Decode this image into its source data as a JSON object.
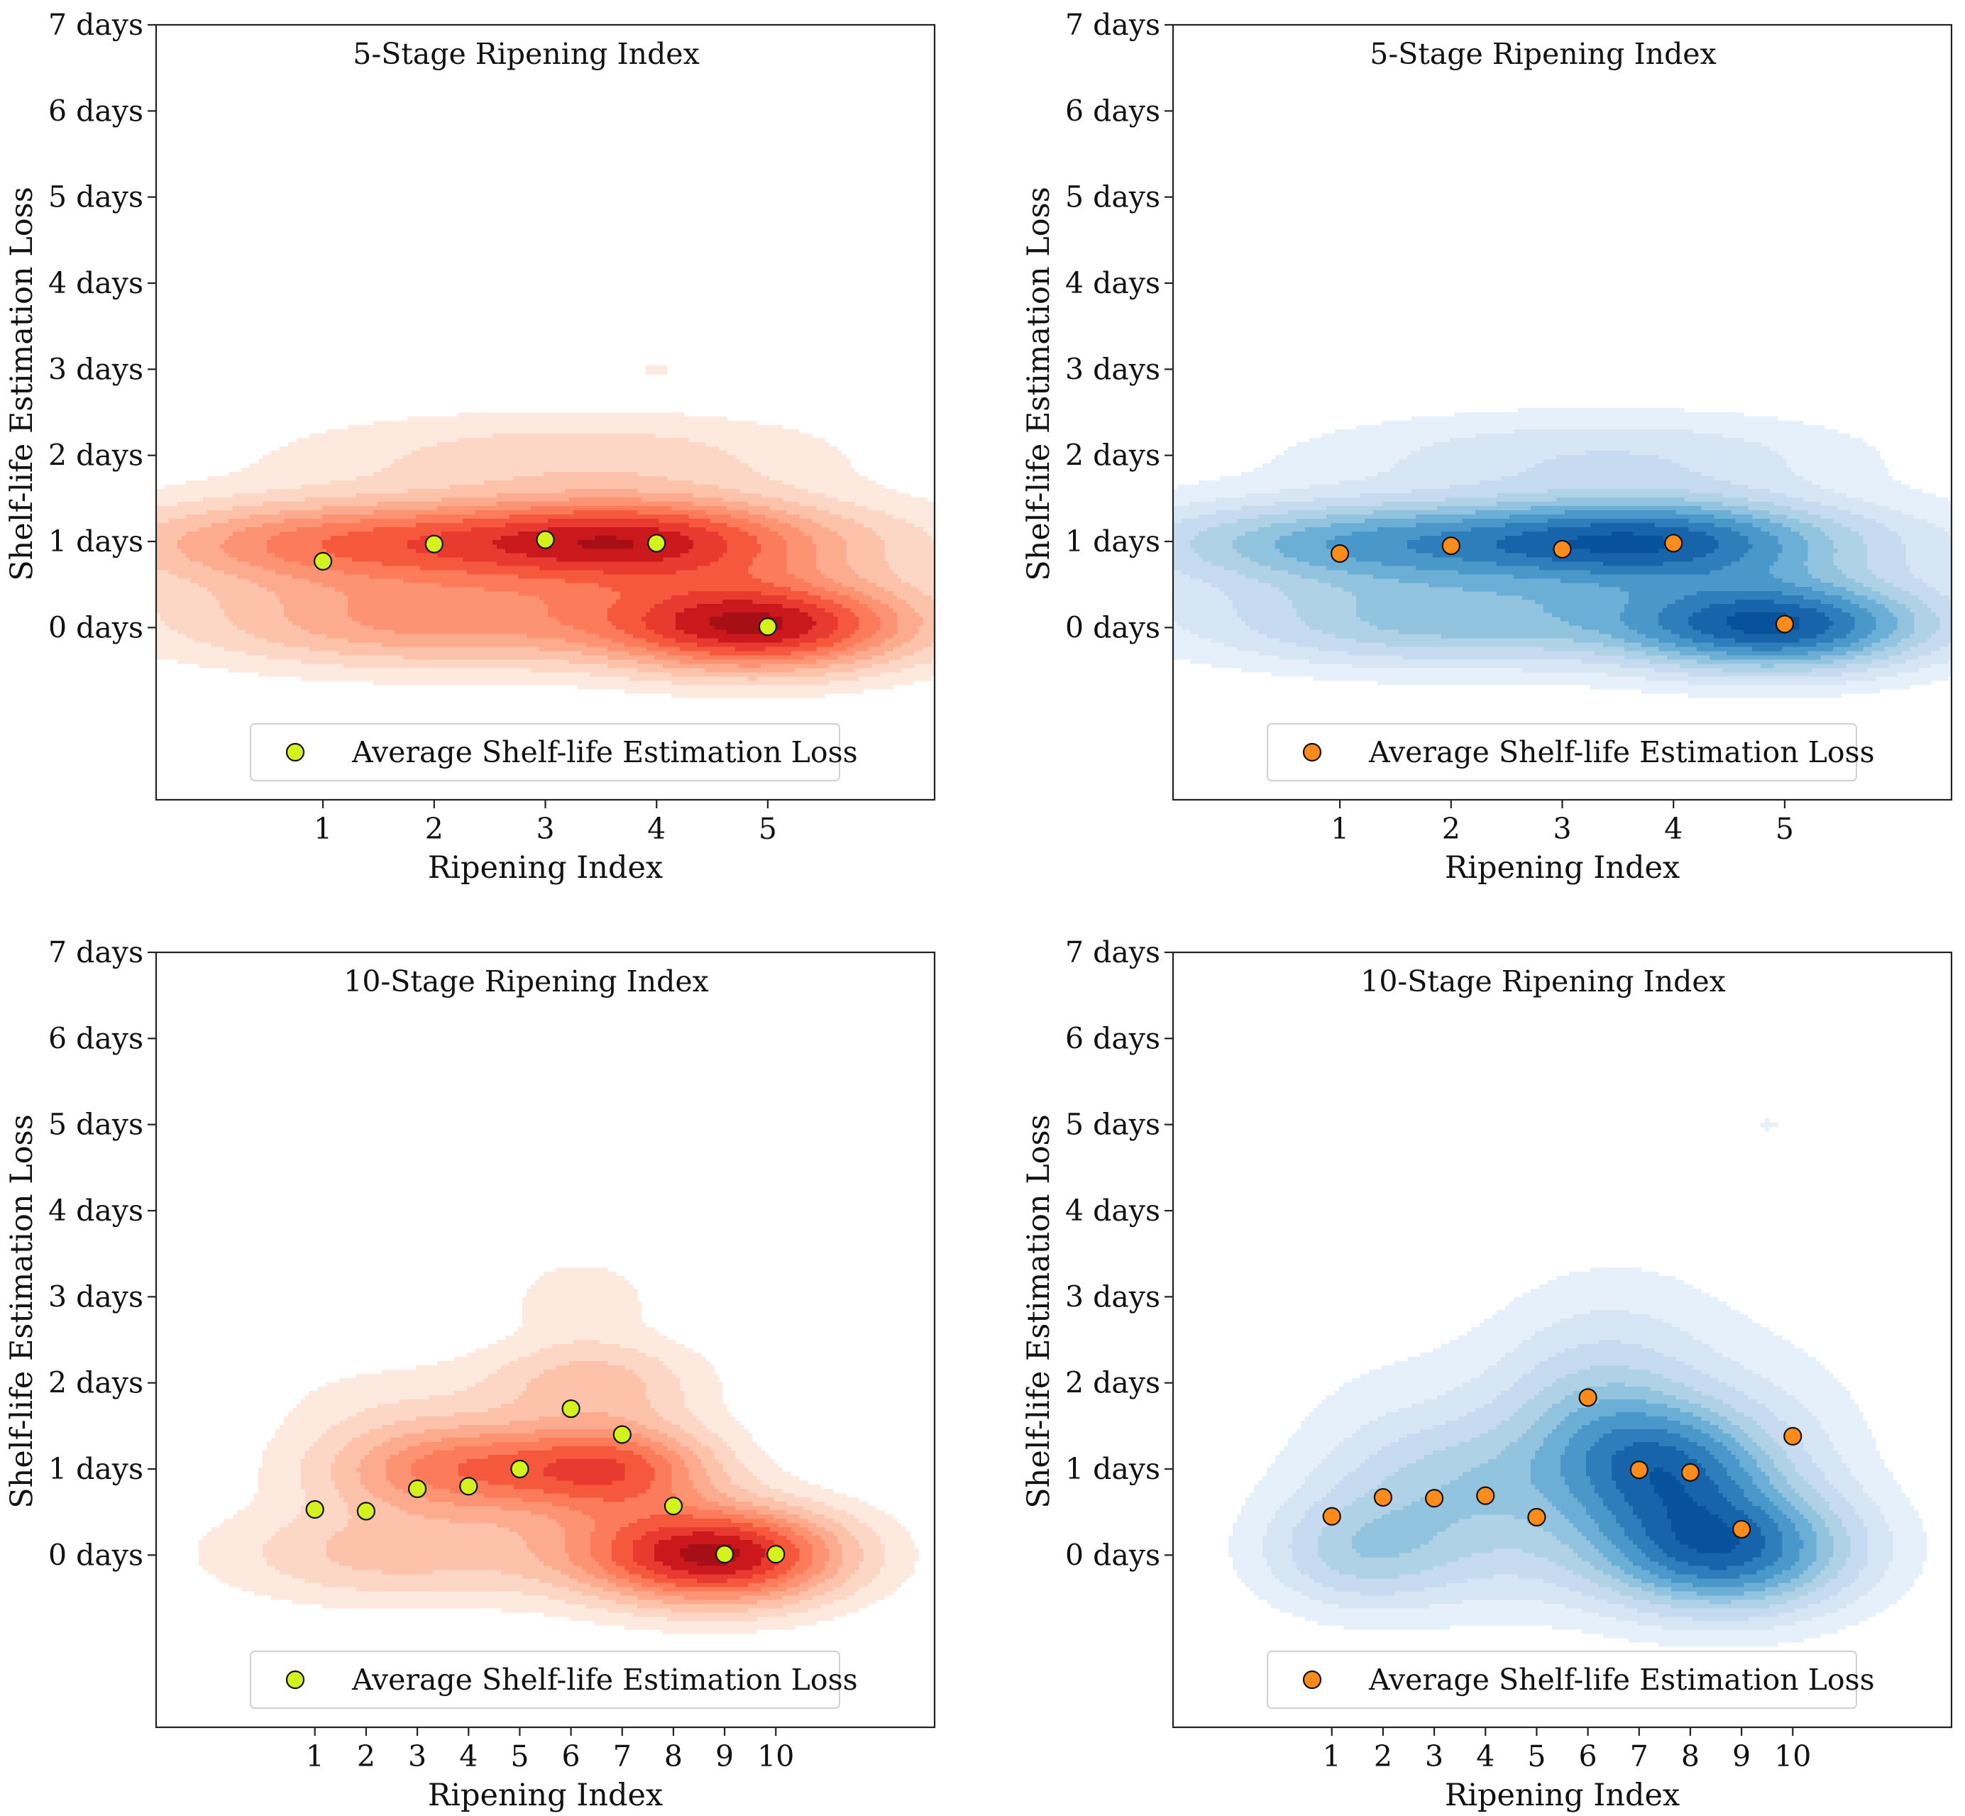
{
  "chart_data": [
    {
      "type": "scatter",
      "title": "5-Stage Ripening Index",
      "xlabel": "Ripening Index",
      "ylabel": "Shelf-life Estimation Loss",
      "x_ticks": [
        "1",
        "2",
        "3",
        "4",
        "5"
      ],
      "y_ticks": [
        "7 days",
        "6 days",
        "5 days",
        "4 days",
        "3 days",
        "2 days",
        "1 days",
        "0 days"
      ],
      "xlim": [
        -0.5,
        6.5
      ],
      "ylim": [
        -2,
        7
      ],
      "colormap": "red",
      "marker_color": "#d4f21c",
      "legend": "Average Shelf-life Estimation Loss",
      "legend_position": "lower center",
      "series": [
        {
          "name": "Average Shelf-life Estimation Loss",
          "x": [
            1,
            2,
            3,
            4,
            5
          ],
          "y": [
            0.77,
            0.97,
            1.02,
            0.98,
            0.01
          ]
        }
      ],
      "density_blobs": [
        {
          "x": 3.8,
          "y": 1.0,
          "w": 1.1,
          "h": 0.36,
          "amp": 1.0
        },
        {
          "x": 2.6,
          "y": 1.0,
          "w": 2.4,
          "h": 0.34,
          "amp": 0.62
        },
        {
          "x": 1.2,
          "y": 0.95,
          "w": 1.2,
          "h": 0.36,
          "amp": 0.5
        },
        {
          "x": 4.9,
          "y": 0.02,
          "w": 0.9,
          "h": 0.36,
          "amp": 1.35
        },
        {
          "x": 3.2,
          "y": 0.1,
          "w": 2.5,
          "h": 0.36,
          "amp": 0.42
        },
        {
          "x": 1.8,
          "y": 0.05,
          "w": 1.2,
          "h": 0.36,
          "amp": 0.38
        },
        {
          "x": 2.5,
          "y": 2.0,
          "w": 1.5,
          "h": 0.34,
          "amp": 0.2
        },
        {
          "x": 4.0,
          "y": 2.0,
          "w": 1.3,
          "h": 0.34,
          "amp": 0.16
        },
        {
          "x": 4.0,
          "y": 3.0,
          "w": 0.35,
          "h": 0.14,
          "amp": 0.1
        }
      ]
    },
    {
      "type": "scatter",
      "title": "5-Stage Ripening Index",
      "xlabel": "Ripening Index",
      "ylabel": "Shelf-life Estimation Loss",
      "x_ticks": [
        "1",
        "2",
        "3",
        "4",
        "5"
      ],
      "y_ticks": [
        "7 days",
        "6 days",
        "5 days",
        "4 days",
        "3 days",
        "2 days",
        "1 days",
        "0 days"
      ],
      "xlim": [
        -0.5,
        6.5
      ],
      "ylim": [
        -2,
        7
      ],
      "colormap": "blue",
      "marker_color": "#ff8c1a",
      "legend": "Average Shelf-life Estimation Loss",
      "legend_position": "lower center",
      "series": [
        {
          "name": "Average Shelf-life Estimation Loss",
          "x": [
            1,
            2,
            3,
            4,
            5
          ],
          "y": [
            0.86,
            0.95,
            0.91,
            0.98,
            0.04
          ]
        }
      ],
      "density_blobs": [
        {
          "x": 3.8,
          "y": 1.0,
          "w": 1.1,
          "h": 0.36,
          "amp": 1.0
        },
        {
          "x": 2.6,
          "y": 1.0,
          "w": 2.4,
          "h": 0.34,
          "amp": 0.62
        },
        {
          "x": 1.2,
          "y": 0.95,
          "w": 1.2,
          "h": 0.36,
          "amp": 0.5
        },
        {
          "x": 4.9,
          "y": 0.02,
          "w": 0.9,
          "h": 0.36,
          "amp": 1.3
        },
        {
          "x": 3.2,
          "y": 0.1,
          "w": 2.5,
          "h": 0.36,
          "amp": 0.42
        },
        {
          "x": 1.8,
          "y": 0.05,
          "w": 1.2,
          "h": 0.36,
          "amp": 0.38
        },
        {
          "x": 2.5,
          "y": 2.0,
          "w": 1.5,
          "h": 0.34,
          "amp": 0.2
        },
        {
          "x": 4.0,
          "y": 2.0,
          "w": 1.3,
          "h": 0.34,
          "amp": 0.2
        }
      ]
    },
    {
      "type": "scatter",
      "title": "10-Stage Ripening Index",
      "xlabel": "Ripening Index",
      "ylabel": "Shelf-life Estimation Loss",
      "x_ticks": [
        "1",
        "2",
        "3",
        "4",
        "5",
        "6",
        "7",
        "8",
        "9",
        "10"
      ],
      "y_ticks": [
        "7 days",
        "6 days",
        "5 days",
        "4 days",
        "3 days",
        "2 days",
        "1 days",
        "0 days"
      ],
      "xlim": [
        -2.1,
        13.1
      ],
      "ylim": [
        -2,
        7
      ],
      "colormap": "red",
      "marker_color": "#d4f21c",
      "legend": "Average Shelf-life Estimation Loss",
      "legend_position": "lower center",
      "series": [
        {
          "name": "Average Shelf-life Estimation Loss",
          "x": [
            1,
            2,
            3,
            4,
            5,
            6,
            7,
            8,
            9,
            10
          ],
          "y": [
            0.53,
            0.51,
            0.77,
            0.8,
            1.0,
            1.7,
            1.4,
            0.57,
            0.01,
            0.01
          ]
        }
      ],
      "density_blobs": [
        {
          "x": 9.0,
          "y": 0.0,
          "w": 1.6,
          "h": 0.38,
          "amp": 1.4
        },
        {
          "x": 7.0,
          "y": 0.05,
          "w": 1.6,
          "h": 0.4,
          "amp": 0.35
        },
        {
          "x": 2.5,
          "y": 0.02,
          "w": 2.2,
          "h": 0.38,
          "amp": 0.4
        },
        {
          "x": 3.5,
          "y": 1.0,
          "w": 1.7,
          "h": 0.38,
          "amp": 0.72
        },
        {
          "x": 7.0,
          "y": 1.0,
          "w": 1.3,
          "h": 0.36,
          "amp": 0.8
        },
        {
          "x": 5.5,
          "y": 1.0,
          "w": 1.6,
          "h": 0.36,
          "amp": 0.35
        },
        {
          "x": 6.4,
          "y": 2.0,
          "w": 1.4,
          "h": 0.36,
          "amp": 0.42
        },
        {
          "x": 6.2,
          "y": 3.0,
          "w": 0.9,
          "h": 0.3,
          "amp": 0.18
        },
        {
          "x": 2.5,
          "y": 1.8,
          "w": 1.7,
          "h": 0.36,
          "amp": 0.12
        }
      ]
    },
    {
      "type": "scatter",
      "title": "10-Stage Ripening Index",
      "xlabel": "Ripening Index",
      "ylabel": "Shelf-life Estimation Loss",
      "x_ticks": [
        "1",
        "2",
        "3",
        "4",
        "5",
        "6",
        "7",
        "8",
        "9",
        "10"
      ],
      "y_ticks": [
        "7 days",
        "6 days",
        "5 days",
        "4 days",
        "3 days",
        "2 days",
        "1 days",
        "0 days"
      ],
      "xlim": [
        -2.1,
        13.1
      ],
      "ylim": [
        -2,
        7
      ],
      "colormap": "blue",
      "marker_color": "#ff8c1a",
      "legend": "Average Shelf-life Estimation Loss",
      "legend_position": "lower center",
      "series": [
        {
          "name": "Average Shelf-life Estimation Loss",
          "x": [
            1,
            2,
            3,
            4,
            5,
            6,
            7,
            8,
            9,
            10
          ],
          "y": [
            0.45,
            0.67,
            0.66,
            0.69,
            0.44,
            1.83,
            0.99,
            0.96,
            0.3,
            1.38
          ]
        }
      ],
      "density_blobs": [
        {
          "x": 8.6,
          "y": 0.05,
          "w": 1.7,
          "h": 0.48,
          "amp": 1.4
        },
        {
          "x": 7.5,
          "y": 1.0,
          "w": 1.4,
          "h": 0.5,
          "amp": 1.1
        },
        {
          "x": 6.2,
          "y": 1.6,
          "w": 1.4,
          "h": 0.6,
          "amp": 0.5
        },
        {
          "x": 3.5,
          "y": 0.9,
          "w": 1.8,
          "h": 0.5,
          "amp": 0.48
        },
        {
          "x": 1.5,
          "y": 0.05,
          "w": 1.3,
          "h": 0.45,
          "amp": 0.5
        },
        {
          "x": 4.0,
          "y": 0.1,
          "w": 2.0,
          "h": 0.55,
          "amp": 0.3
        },
        {
          "x": 6.5,
          "y": 2.5,
          "w": 1.6,
          "h": 0.7,
          "amp": 0.18
        },
        {
          "x": 9.5,
          "y": 1.2,
          "w": 1.5,
          "h": 0.9,
          "amp": 0.2
        },
        {
          "x": 2.5,
          "y": 1.8,
          "w": 1.7,
          "h": 0.6,
          "amp": 0.1
        },
        {
          "x": 9.5,
          "y": 5.0,
          "w": 0.25,
          "h": 0.08,
          "amp": 0.12
        }
      ]
    }
  ]
}
